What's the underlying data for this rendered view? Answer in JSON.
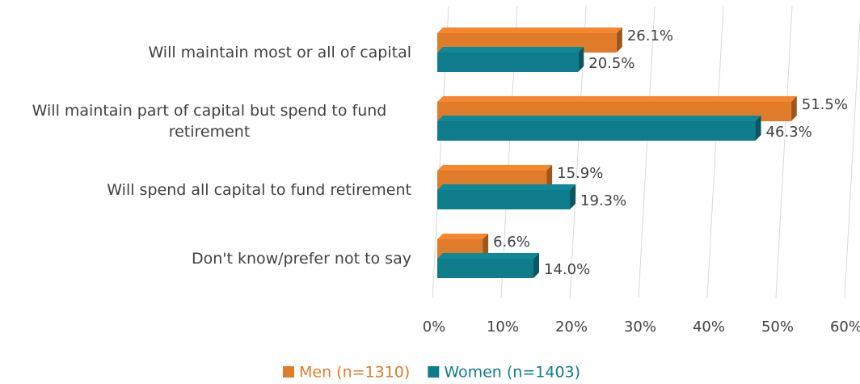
{
  "chart_data": {
    "type": "bar",
    "orientation": "horizontal",
    "categories": [
      "Will maintain most or all of capital",
      "Will maintain part of capital but spend to fund retirement",
      "Will spend all capital to fund retirement",
      "Don't know/prefer not to say"
    ],
    "series": [
      {
        "name": "Men (n=1310)",
        "color": "#e07b2a",
        "values": [
          26.1,
          51.5,
          15.9,
          6.6
        ],
        "value_labels": [
          "26.1%",
          "51.5%",
          "15.9%",
          "6.6%"
        ]
      },
      {
        "name": "Women (n=1403)",
        "color": "#0e7c8b",
        "values": [
          20.5,
          46.3,
          19.3,
          14.0
        ],
        "value_labels": [
          "20.5%",
          "46.3%",
          "19.3%",
          "14.0%"
        ]
      }
    ],
    "xlim": [
      0,
      60
    ],
    "xticks": [
      {
        "value": 0,
        "label": "0%"
      },
      {
        "value": 10,
        "label": "10%"
      },
      {
        "value": 20,
        "label": "20%"
      },
      {
        "value": 30,
        "label": "30%"
      },
      {
        "value": 40,
        "label": "40%"
      },
      {
        "value": 50,
        "label": "50%"
      },
      {
        "value": 60,
        "label": "60%"
      }
    ],
    "grid": true,
    "legend": "bottom"
  }
}
